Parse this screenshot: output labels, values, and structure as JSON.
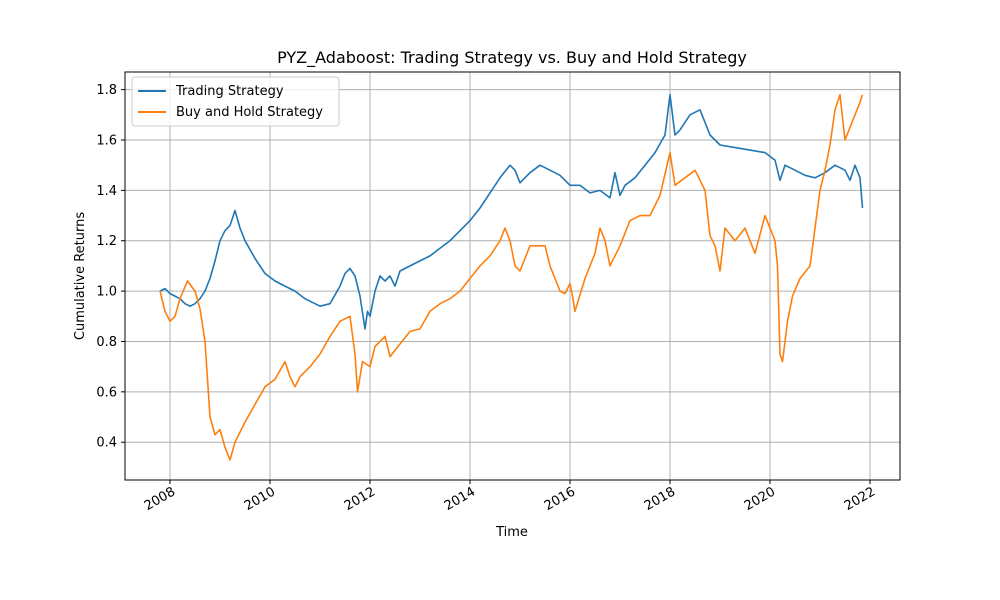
{
  "chart_data": {
    "type": "line",
    "title": "PYZ_Adaboost: Trading Strategy vs. Buy and Hold Strategy",
    "xlabel": "Time",
    "ylabel": "Cumulative Returns",
    "xlim": [
      2007.1,
      2022.6
    ],
    "ylim": [
      0.25,
      1.87
    ],
    "x_ticks": [
      2008,
      2010,
      2012,
      2014,
      2016,
      2018,
      2020,
      2022
    ],
    "x_tick_labels": [
      "2008",
      "2010",
      "2012",
      "2014",
      "2016",
      "2018",
      "2020",
      "2022"
    ],
    "y_ticks": [
      0.4,
      0.6,
      0.8,
      1.0,
      1.2,
      1.4,
      1.6,
      1.8
    ],
    "y_tick_labels": [
      "0.4",
      "0.6",
      "0.8",
      "1.0",
      "1.2",
      "1.4",
      "1.6",
      "1.8"
    ],
    "grid": true,
    "legend_position": "top-left",
    "series": [
      {
        "name": "Trading Strategy",
        "color": "#1f77b4",
        "points": [
          [
            2007.8,
            1.0
          ],
          [
            2007.9,
            1.01
          ],
          [
            2008.0,
            0.99
          ],
          [
            2008.1,
            0.98
          ],
          [
            2008.2,
            0.97
          ],
          [
            2008.3,
            0.95
          ],
          [
            2008.4,
            0.94
          ],
          [
            2008.5,
            0.95
          ],
          [
            2008.6,
            0.97
          ],
          [
            2008.7,
            1.0
          ],
          [
            2008.8,
            1.05
          ],
          [
            2008.9,
            1.12
          ],
          [
            2009.0,
            1.2
          ],
          [
            2009.1,
            1.24
          ],
          [
            2009.2,
            1.26
          ],
          [
            2009.3,
            1.32
          ],
          [
            2009.4,
            1.25
          ],
          [
            2009.5,
            1.2
          ],
          [
            2009.7,
            1.13
          ],
          [
            2009.9,
            1.07
          ],
          [
            2010.1,
            1.04
          ],
          [
            2010.3,
            1.02
          ],
          [
            2010.5,
            1.0
          ],
          [
            2010.7,
            0.97
          ],
          [
            2010.9,
            0.95
          ],
          [
            2011.0,
            0.94
          ],
          [
            2011.2,
            0.95
          ],
          [
            2011.4,
            1.02
          ],
          [
            2011.5,
            1.07
          ],
          [
            2011.6,
            1.09
          ],
          [
            2011.7,
            1.06
          ],
          [
            2011.8,
            0.98
          ],
          [
            2011.9,
            0.85
          ],
          [
            2011.95,
            0.92
          ],
          [
            2012.0,
            0.9
          ],
          [
            2012.1,
            1.0
          ],
          [
            2012.2,
            1.06
          ],
          [
            2012.3,
            1.04
          ],
          [
            2012.4,
            1.06
          ],
          [
            2012.5,
            1.02
          ],
          [
            2012.6,
            1.08
          ],
          [
            2012.8,
            1.1
          ],
          [
            2013.0,
            1.12
          ],
          [
            2013.2,
            1.14
          ],
          [
            2013.4,
            1.17
          ],
          [
            2013.6,
            1.2
          ],
          [
            2013.8,
            1.24
          ],
          [
            2014.0,
            1.28
          ],
          [
            2014.2,
            1.33
          ],
          [
            2014.4,
            1.39
          ],
          [
            2014.6,
            1.45
          ],
          [
            2014.8,
            1.5
          ],
          [
            2014.9,
            1.48
          ],
          [
            2015.0,
            1.43
          ],
          [
            2015.2,
            1.47
          ],
          [
            2015.4,
            1.5
          ],
          [
            2015.6,
            1.48
          ],
          [
            2015.8,
            1.46
          ],
          [
            2016.0,
            1.42
          ],
          [
            2016.2,
            1.42
          ],
          [
            2016.4,
            1.39
          ],
          [
            2016.6,
            1.4
          ],
          [
            2016.8,
            1.37
          ],
          [
            2016.9,
            1.47
          ],
          [
            2017.0,
            1.38
          ],
          [
            2017.1,
            1.42
          ],
          [
            2017.3,
            1.45
          ],
          [
            2017.5,
            1.5
          ],
          [
            2017.7,
            1.55
          ],
          [
            2017.9,
            1.62
          ],
          [
            2018.0,
            1.78
          ],
          [
            2018.1,
            1.62
          ],
          [
            2018.2,
            1.64
          ],
          [
            2018.4,
            1.7
          ],
          [
            2018.6,
            1.72
          ],
          [
            2018.8,
            1.62
          ],
          [
            2019.0,
            1.58
          ],
          [
            2019.3,
            1.57
          ],
          [
            2019.6,
            1.56
          ],
          [
            2019.9,
            1.55
          ],
          [
            2020.1,
            1.52
          ],
          [
            2020.2,
            1.44
          ],
          [
            2020.3,
            1.5
          ],
          [
            2020.5,
            1.48
          ],
          [
            2020.7,
            1.46
          ],
          [
            2020.9,
            1.45
          ],
          [
            2021.1,
            1.47
          ],
          [
            2021.3,
            1.5
          ],
          [
            2021.5,
            1.48
          ],
          [
            2021.6,
            1.44
          ],
          [
            2021.7,
            1.5
          ],
          [
            2021.8,
            1.45
          ],
          [
            2021.85,
            1.33
          ]
        ]
      },
      {
        "name": "Buy and Hold Strategy",
        "color": "#ff7f0e",
        "points": [
          [
            2007.8,
            1.0
          ],
          [
            2007.9,
            0.92
          ],
          [
            2008.0,
            0.88
          ],
          [
            2008.1,
            0.9
          ],
          [
            2008.2,
            0.97
          ],
          [
            2008.35,
            1.04
          ],
          [
            2008.5,
            1.0
          ],
          [
            2008.6,
            0.93
          ],
          [
            2008.7,
            0.8
          ],
          [
            2008.8,
            0.5
          ],
          [
            2008.9,
            0.43
          ],
          [
            2009.0,
            0.45
          ],
          [
            2009.1,
            0.38
          ],
          [
            2009.2,
            0.33
          ],
          [
            2009.3,
            0.4
          ],
          [
            2009.5,
            0.48
          ],
          [
            2009.7,
            0.55
          ],
          [
            2009.9,
            0.62
          ],
          [
            2010.1,
            0.65
          ],
          [
            2010.3,
            0.72
          ],
          [
            2010.4,
            0.66
          ],
          [
            2010.5,
            0.62
          ],
          [
            2010.6,
            0.66
          ],
          [
            2010.8,
            0.7
          ],
          [
            2011.0,
            0.75
          ],
          [
            2011.2,
            0.82
          ],
          [
            2011.4,
            0.88
          ],
          [
            2011.6,
            0.9
          ],
          [
            2011.7,
            0.75
          ],
          [
            2011.75,
            0.6
          ],
          [
            2011.85,
            0.72
          ],
          [
            2012.0,
            0.7
          ],
          [
            2012.1,
            0.78
          ],
          [
            2012.3,
            0.82
          ],
          [
            2012.4,
            0.74
          ],
          [
            2012.6,
            0.79
          ],
          [
            2012.8,
            0.84
          ],
          [
            2013.0,
            0.85
          ],
          [
            2013.2,
            0.92
          ],
          [
            2013.4,
            0.95
          ],
          [
            2013.6,
            0.97
          ],
          [
            2013.8,
            1.0
          ],
          [
            2014.0,
            1.05
          ],
          [
            2014.2,
            1.1
          ],
          [
            2014.4,
            1.14
          ],
          [
            2014.6,
            1.2
          ],
          [
            2014.7,
            1.25
          ],
          [
            2014.8,
            1.2
          ],
          [
            2014.9,
            1.1
          ],
          [
            2015.0,
            1.08
          ],
          [
            2015.2,
            1.18
          ],
          [
            2015.5,
            1.18
          ],
          [
            2015.6,
            1.1
          ],
          [
            2015.7,
            1.05
          ],
          [
            2015.8,
            1.0
          ],
          [
            2015.9,
            0.99
          ],
          [
            2016.0,
            1.03
          ],
          [
            2016.05,
            0.98
          ],
          [
            2016.1,
            0.92
          ],
          [
            2016.3,
            1.05
          ],
          [
            2016.5,
            1.15
          ],
          [
            2016.6,
            1.25
          ],
          [
            2016.7,
            1.2
          ],
          [
            2016.8,
            1.1
          ],
          [
            2017.0,
            1.18
          ],
          [
            2017.2,
            1.28
          ],
          [
            2017.4,
            1.3
          ],
          [
            2017.6,
            1.3
          ],
          [
            2017.8,
            1.38
          ],
          [
            2018.0,
            1.55
          ],
          [
            2018.1,
            1.42
          ],
          [
            2018.3,
            1.45
          ],
          [
            2018.5,
            1.48
          ],
          [
            2018.7,
            1.4
          ],
          [
            2018.8,
            1.22
          ],
          [
            2018.9,
            1.18
          ],
          [
            2019.0,
            1.08
          ],
          [
            2019.1,
            1.25
          ],
          [
            2019.3,
            1.2
          ],
          [
            2019.5,
            1.25
          ],
          [
            2019.7,
            1.15
          ],
          [
            2019.9,
            1.3
          ],
          [
            2020.0,
            1.25
          ],
          [
            2020.1,
            1.2
          ],
          [
            2020.15,
            1.1
          ],
          [
            2020.2,
            0.75
          ],
          [
            2020.25,
            0.72
          ],
          [
            2020.35,
            0.88
          ],
          [
            2020.45,
            0.98
          ],
          [
            2020.6,
            1.05
          ],
          [
            2020.8,
            1.1
          ],
          [
            2020.9,
            1.25
          ],
          [
            2021.0,
            1.4
          ],
          [
            2021.1,
            1.48
          ],
          [
            2021.2,
            1.58
          ],
          [
            2021.3,
            1.72
          ],
          [
            2021.4,
            1.78
          ],
          [
            2021.5,
            1.6
          ],
          [
            2021.6,
            1.65
          ],
          [
            2021.7,
            1.7
          ],
          [
            2021.8,
            1.75
          ],
          [
            2021.85,
            1.78
          ]
        ]
      }
    ]
  }
}
